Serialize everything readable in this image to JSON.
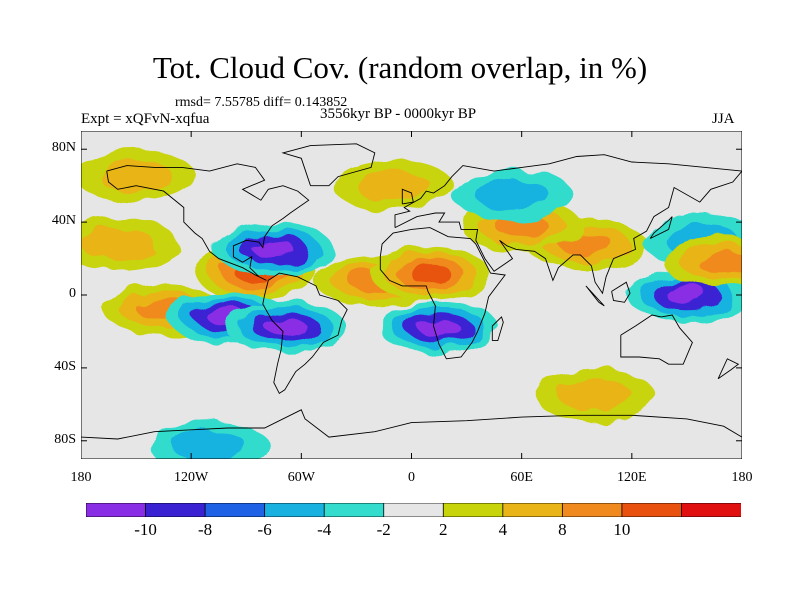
{
  "title": "Tot. Cloud Cov. (random overlap, in %)",
  "stats": "rmsd= 7.55785  diff= 0.143852",
  "expt": "Expt = xQFvN-xqfua",
  "period": "3556kyr BP - 0000kyr BP",
  "season": "JJA",
  "lat_ticks": [
    "80N",
    "40N",
    "0",
    "40S",
    "80S"
  ],
  "lon_ticks": [
    "180",
    "120W",
    "60W",
    "0",
    "60E",
    "120E",
    "180"
  ],
  "colorbar": {
    "labels": [
      "-10",
      "-8",
      "-6",
      "-4",
      "-2",
      "2",
      "4",
      "8",
      "10"
    ],
    "colors": [
      "#8a2ee6",
      "#3a22d2",
      "#1f62e6",
      "#19b2e0",
      "#33dccc",
      "#e6e6e6",
      "#c8d40a",
      "#e8b418",
      "#f08a1e",
      "#e8520e",
      "#e01010"
    ]
  },
  "chart_data": {
    "type": "heatmap",
    "variable": "Tot. Cloud Cov. (random overlap, in %)",
    "xrange": [
      -180,
      180
    ],
    "yrange": [
      -90,
      90
    ],
    "contour_levels": [
      -10,
      -8,
      -6,
      -4,
      -2,
      2,
      4,
      8,
      10
    ],
    "anomaly_regions": [
      {
        "lon": -135,
        "lat": -8,
        "value": 10
      },
      {
        "lon": -85,
        "lat": 12,
        "value": 12
      },
      {
        "lon": -100,
        "lat": -12,
        "value": -12
      },
      {
        "lon": -75,
        "lat": 25,
        "value": -11
      },
      {
        "lon": -68,
        "lat": -18,
        "value": -11
      },
      {
        "lon": -20,
        "lat": 8,
        "value": 10
      },
      {
        "lon": 10,
        "lat": 12,
        "value": 11
      },
      {
        "lon": 15,
        "lat": -18,
        "value": -11
      },
      {
        "lon": 95,
        "lat": 28,
        "value": 9
      },
      {
        "lon": 150,
        "lat": 0,
        "value": -11
      },
      {
        "lon": 158,
        "lat": 30,
        "value": -8
      },
      {
        "lon": 170,
        "lat": 18,
        "value": 10
      },
      {
        "lon": -160,
        "lat": 28,
        "value": 8
      },
      {
        "lon": 60,
        "lat": 38,
        "value": 10
      },
      {
        "lon": 55,
        "lat": 55,
        "value": -5
      },
      {
        "lon": -150,
        "lat": 65,
        "value": 6
      },
      {
        "lon": -10,
        "lat": 60,
        "value": 5
      },
      {
        "lon": 100,
        "lat": -55,
        "value": 5
      },
      {
        "lon": -110,
        "lat": -83,
        "value": -7
      }
    ]
  }
}
